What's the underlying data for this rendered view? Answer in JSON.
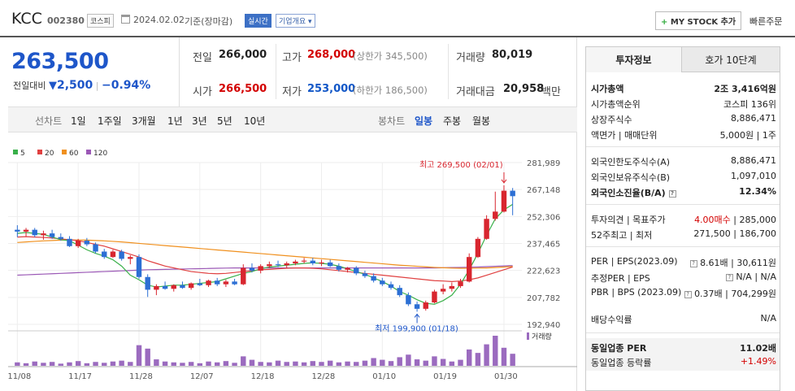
{
  "header": {
    "name": "KCC",
    "code": "002380",
    "market": "코스피",
    "date": "2024.02.02",
    "date_suffix": "기준(장마감)",
    "realtime": "실시간",
    "company_overview": "기업개요",
    "mystock_button": "MY STOCK 추가",
    "quick_order": "빠른주문"
  },
  "price": {
    "current": "263,500",
    "change_label": "전일대비",
    "change": "2,500",
    "change_pct": "−0.94%"
  },
  "quote": {
    "prev_close_label": "전일",
    "prev_close": "266,000",
    "high_label": "고가",
    "high": "268,000",
    "upper_limit": "(상한가 345,500)",
    "volume_label": "거래량",
    "volume": "80,019",
    "open_label": "시가",
    "open": "266,500",
    "low_label": "저가",
    "low": "253,000",
    "lower_limit": "(하한가 186,500)",
    "value_label": "거래대금",
    "value": "20,958",
    "value_unit": "백만"
  },
  "periods": {
    "line_label": "선차트",
    "line": [
      "1일",
      "1주일",
      "3개월",
      "1년",
      "3년",
      "5년",
      "10년"
    ],
    "candle_label": "봉차트",
    "candle": [
      "일봉",
      "주봉",
      "월봉"
    ]
  },
  "chart_data": {
    "type": "candlestick",
    "legend": [
      "5",
      "20",
      "60",
      "120"
    ],
    "legend_colors": [
      "#3ab04a",
      "#e04040",
      "#f0901e",
      "#9b59b6"
    ],
    "y_ticks": [
      281989,
      267148,
      252306,
      237465,
      222623,
      207782,
      192940
    ],
    "y_tick_labels": [
      "281,989",
      "267,148",
      "252,306",
      "237,465",
      "222,623",
      "207,782",
      "192,940"
    ],
    "ylim": [
      192940,
      281989
    ],
    "x_tick_labels": [
      "11/08",
      "11/17",
      "11/28",
      "12/07",
      "12/18",
      "12/28",
      "01/10",
      "01/19",
      "01/30"
    ],
    "x_tick_index": [
      0,
      7,
      14,
      21,
      28,
      35,
      42,
      49,
      56
    ],
    "max_label": "최고 269,500 (02/01)",
    "min_label": "최저 199,900 (01/18)",
    "volume_legend": "거래량",
    "up_color": "#d8262f",
    "down_color": "#2c6fd4",
    "candles": [
      [
        245000,
        247500,
        241000,
        244000
      ],
      [
        244000,
        246000,
        241500,
        245000
      ],
      [
        245000,
        246000,
        241000,
        242000
      ],
      [
        242000,
        244500,
        239500,
        243000
      ],
      [
        243000,
        245000,
        240000,
        241000
      ],
      [
        241000,
        243000,
        239000,
        240000
      ],
      [
        240000,
        241500,
        235500,
        236000
      ],
      [
        236000,
        240000,
        235000,
        239000
      ],
      [
        239000,
        240500,
        236000,
        237000
      ],
      [
        237000,
        238000,
        232000,
        233000
      ],
      [
        233000,
        234500,
        229000,
        230000
      ],
      [
        230000,
        234000,
        229500,
        233000
      ],
      [
        233000,
        234000,
        228000,
        229000
      ],
      [
        229000,
        231000,
        226000,
        230000
      ],
      [
        230000,
        231500,
        218000,
        219000
      ],
      [
        219000,
        220500,
        208000,
        212000
      ],
      [
        212000,
        215000,
        209000,
        214000
      ],
      [
        214000,
        216500,
        212000,
        212500
      ],
      [
        212500,
        215000,
        211000,
        214500
      ],
      [
        214500,
        216500,
        212500,
        213000
      ],
      [
        213000,
        216000,
        212000,
        215500
      ],
      [
        215500,
        218000,
        214000,
        214500
      ],
      [
        214500,
        217500,
        213500,
        217000
      ],
      [
        217000,
        218500,
        214000,
        215000
      ],
      [
        215000,
        217500,
        213500,
        216500
      ],
      [
        216500,
        218000,
        214500,
        215000
      ],
      [
        215000,
        226000,
        214500,
        224000
      ],
      [
        224000,
        226500,
        221500,
        222500
      ],
      [
        222500,
        226000,
        221000,
        225000
      ],
      [
        225000,
        227500,
        224000,
        226000
      ],
      [
        226000,
        228000,
        224500,
        225500
      ],
      [
        225500,
        227500,
        224000,
        226500
      ],
      [
        226500,
        228500,
        225500,
        227500
      ],
      [
        227500,
        229500,
        226500,
        228000
      ],
      [
        228000,
        229500,
        225500,
        226500
      ],
      [
        226500,
        228500,
        225000,
        227000
      ],
      [
        227000,
        228500,
        224500,
        225000
      ],
      [
        225000,
        226500,
        222000,
        223000
      ],
      [
        223000,
        224500,
        221500,
        224000
      ],
      [
        224000,
        225000,
        220000,
        221000
      ],
      [
        221000,
        222500,
        218500,
        219500
      ],
      [
        219500,
        221000,
        216000,
        217000
      ],
      [
        217000,
        218500,
        214000,
        215000
      ],
      [
        215000,
        216500,
        212000,
        213000
      ],
      [
        213000,
        214500,
        208000,
        209000
      ],
      [
        209000,
        210500,
        203000,
        204000
      ],
      [
        204000,
        205500,
        199900,
        201500
      ],
      [
        201500,
        206000,
        200500,
        205000
      ],
      [
        205000,
        212000,
        204500,
        211000
      ],
      [
        211000,
        215000,
        209500,
        212500
      ],
      [
        212500,
        216000,
        211000,
        214000
      ],
      [
        214000,
        218000,
        213000,
        216500
      ],
      [
        216500,
        232000,
        216000,
        230000
      ],
      [
        230000,
        241000,
        229500,
        240000
      ],
      [
        240000,
        253000,
        239500,
        251000
      ],
      [
        251000,
        266000,
        250000,
        255000
      ],
      [
        255000,
        269500,
        254500,
        266500
      ],
      [
        266500,
        268000,
        253000,
        263500
      ]
    ],
    "ma5": [
      243000,
      243500,
      243000,
      242500,
      241000,
      239500,
      239000,
      236500,
      234000,
      232000,
      230500,
      228500,
      225000,
      220000,
      217500,
      214500,
      213500,
      214000,
      214500,
      214500,
      215000,
      215500,
      216000,
      216500,
      218000,
      219500,
      221000,
      222000,
      223500,
      224500,
      225000,
      225500,
      226000,
      226500,
      226800,
      226500,
      226000,
      225000,
      223500,
      222000,
      220500,
      218500,
      216500,
      214000,
      211000,
      209000,
      206500,
      204500,
      204000,
      206000,
      209000,
      215000,
      223000,
      232000,
      242000,
      251000,
      256000,
      259000
    ],
    "ma20": [
      241000,
      241200,
      241000,
      240800,
      240500,
      240000,
      239500,
      239000,
      238000,
      237000,
      236000,
      234500,
      233000,
      231500,
      230000,
      228000,
      226500,
      225000,
      224000,
      223000,
      222000,
      221500,
      221000,
      220800,
      221000,
      221500,
      222000,
      222500,
      223000,
      223200,
      223500,
      223800,
      224000,
      224000,
      223800,
      223500,
      223000,
      222500,
      222000,
      221500,
      221000,
      220500,
      220000,
      219500,
      219000,
      218500,
      218000,
      217500,
      217000,
      216800,
      216500,
      216800,
      217500,
      218500,
      220000,
      221500,
      223000,
      224500
    ],
    "ma60": [
      238000,
      238300,
      238600,
      238900,
      239100,
      239300,
      239400,
      239400,
      239300,
      239100,
      238900,
      238600,
      238300,
      237900,
      237500,
      237100,
      236700,
      236300,
      235900,
      235500,
      235100,
      234700,
      234300,
      233900,
      233500,
      233100,
      232700,
      232300,
      231900,
      231500,
      231100,
      230700,
      230300,
      229900,
      229500,
      229100,
      228700,
      228300,
      227900,
      227500,
      227100,
      226700,
      226300,
      225900,
      225500,
      225200,
      224900,
      224600,
      224300,
      224100,
      223900,
      223800,
      223800,
      223900,
      224000,
      224200,
      224500,
      224800
    ],
    "ma120": [
      220000,
      220200,
      220400,
      220600,
      220800,
      221000,
      221200,
      221400,
      221600,
      221800,
      222000,
      222200,
      222400,
      222600,
      222800,
      223000,
      223100,
      223200,
      223300,
      223400,
      223500,
      223600,
      223700,
      223800,
      223900,
      224000,
      224000,
      224000,
      224000,
      224000,
      224000,
      224000,
      224000,
      224000,
      224000,
      224000,
      224000,
      224000,
      224000,
      224000,
      224000,
      224000,
      224000,
      224000,
      224000,
      224000,
      224000,
      224000,
      224000,
      224100,
      224200,
      224300,
      224400,
      224500,
      224700,
      224900,
      225100,
      225300
    ],
    "volumes": [
      8,
      6,
      10,
      7,
      9,
      5,
      8,
      11,
      6,
      9,
      7,
      10,
      12,
      9,
      48,
      40,
      15,
      10,
      8,
      7,
      9,
      6,
      10,
      8,
      11,
      7,
      22,
      14,
      9,
      8,
      12,
      9,
      10,
      8,
      11,
      9,
      12,
      8,
      10,
      9,
      12,
      18,
      14,
      11,
      20,
      26,
      15,
      12,
      22,
      16,
      10,
      14,
      38,
      30,
      50,
      70,
      42,
      28
    ]
  },
  "right_panel": {
    "tab_invest": "투자정보",
    "tab_hoga": "호가 10단계",
    "market_cap_label": "시가총액",
    "market_cap": "2조 3,416억원",
    "rank_label": "시가총액순위",
    "rank": "코스피 136위",
    "shares_label": "상장주식수",
    "shares": "8,886,471",
    "par_label": "액면가 | 매매단위",
    "par": "5,000원 | 1주",
    "foreign_limit_label": "외국인한도주식수(A)",
    "foreign_limit": "8,886,471",
    "foreign_hold_label": "외국인보유주식수(B)",
    "foreign_hold": "1,097,010",
    "foreign_ratio_label": "외국인소진율(B/A)",
    "foreign_ratio": "12.34%",
    "opinion_label": "투자의견 | 목표주가",
    "opinion": "4.00매수",
    "target": "285,000",
    "wk52_label": "52주최고 | 최저",
    "wk52": "271,500 | 186,700",
    "per_label": "PER | EPS(2023.09)",
    "per": "8.61배",
    "eps": "30,611원",
    "est_label": "추정PER | EPS",
    "est": "N/A | N/A",
    "pbr_label": "PBR | BPS (2023.09)",
    "pbr": "0.37배",
    "bps": "704,299원",
    "div_label": "배당수익률",
    "div": "N/A",
    "sector_per_label": "동일업종 PER",
    "sector_per": "11.02배",
    "sector_rate_label": "동일업종 등락률",
    "sector_rate": "+1.49%"
  }
}
